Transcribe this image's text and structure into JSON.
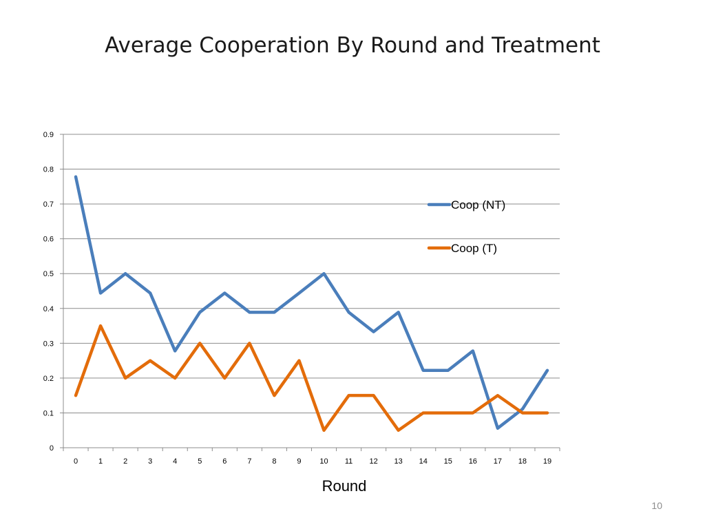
{
  "slide": {
    "title": "Average Cooperation By Round and Treatment",
    "page_number": "10"
  },
  "chart_data": {
    "type": "line",
    "title": "",
    "xlabel": "Round",
    "ylabel": "",
    "categories": [
      "0",
      "1",
      "2",
      "3",
      "4",
      "5",
      "6",
      "7",
      "8",
      "9",
      "10",
      "11",
      "12",
      "13",
      "14",
      "15",
      "16",
      "17",
      "18",
      "19"
    ],
    "ylim": [
      0,
      0.9
    ],
    "yticks": [
      "0",
      "0.1",
      "0.2",
      "0.3",
      "0.4",
      "0.5",
      "0.6",
      "0.7",
      "0.8",
      "0.9"
    ],
    "grid": true,
    "legend_position": "right",
    "series": [
      {
        "name": "Coop (NT)",
        "color": "#4a7ebb",
        "values": [
          0.778,
          0.444,
          0.5,
          0.444,
          0.278,
          0.389,
          0.444,
          0.389,
          0.389,
          0.444,
          0.5,
          0.389,
          0.333,
          0.389,
          0.222,
          0.222,
          0.278,
          0.056,
          0.111,
          0.222
        ]
      },
      {
        "name": "Coop (T)",
        "color": "#e36c0a",
        "values": [
          0.15,
          0.35,
          0.2,
          0.25,
          0.2,
          0.3,
          0.2,
          0.3,
          0.15,
          0.25,
          0.05,
          0.15,
          0.15,
          0.05,
          0.1,
          0.1,
          0.1,
          0.15,
          0.1,
          0.1
        ]
      }
    ]
  }
}
